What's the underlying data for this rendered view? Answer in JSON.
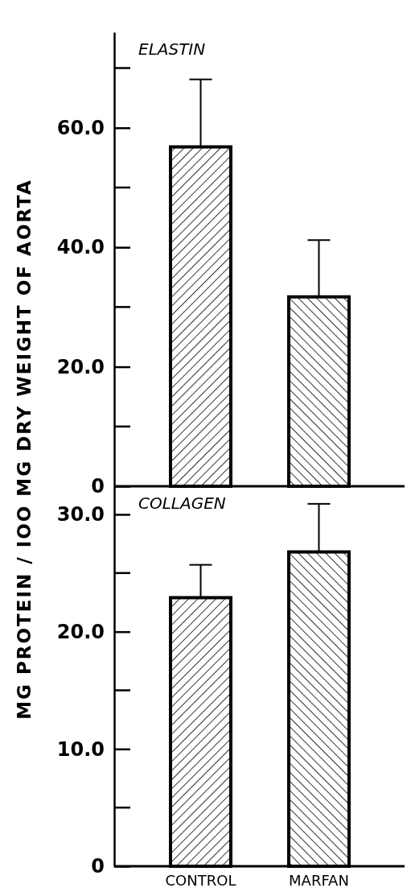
{
  "chart_data": [
    {
      "type": "bar",
      "title": "ELASTIN",
      "ylabel": "MG PROTEIN / IOO MG DRY WEIGHT OF AORTA",
      "categories": [
        null,
        null
      ],
      "values": [
        56.8,
        31.7
      ],
      "errors": [
        [
          56.8,
          68.1
        ],
        [
          31.7,
          41.2
        ]
      ],
      "color": "#000000",
      "ylim": [
        0,
        76
      ],
      "yticks": [
        0,
        {
          "value": 20,
          "label": "20.0"
        },
        {
          "value": 40,
          "label": "40.0"
        },
        {
          "value": 60,
          "label": "60.0"
        }
      ],
      "tick_labels": "y"
    },
    {
      "type": "bar",
      "title": "COLLAGEN",
      "categories": [
        "CONTROL",
        "MARFAN"
      ],
      "values": [
        22.9,
        26.8
      ],
      "errors": [
        [
          22.9,
          25.7
        ],
        [
          26.8,
          30.9
        ]
      ],
      "color": "#000000",
      "ylim": [
        0,
        32.4
      ],
      "yticks": [
        0,
        {
          "value": 10,
          "label": "10.0"
        },
        {
          "value": 20,
          "label": "20.0"
        },
        {
          "value": 30,
          "label": "30.0"
        }
      ]
    }
  ]
}
